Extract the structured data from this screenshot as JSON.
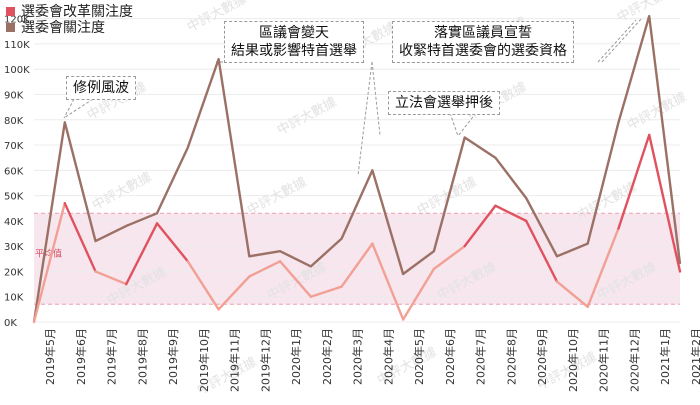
{
  "chart_data": {
    "type": "line",
    "categories": [
      "2019年5月",
      "2019年6月",
      "2019年7月",
      "2019年8月",
      "2019年9月",
      "2019年10月",
      "2019年11月",
      "2019年12月",
      "2020年1月",
      "2020年2月",
      "2020年3月",
      "2020年4月",
      "2020年5月",
      "2020年6月",
      "2020年7月",
      "2020年8月",
      "2020年9月",
      "2020年10月",
      "2020年11月",
      "2020年12月",
      "2021年1月",
      "2021年2月"
    ],
    "x_labels": [
      "2019年5月",
      "2019年6月",
      "2019年7月",
      "2019年8月",
      "2019年9月",
      "2019年10月",
      "2019年11月",
      "2019年12月",
      "2020年1月",
      "2020年2月",
      "2020年3月",
      "2020年4月",
      "2020年5月",
      "2020年6月",
      "2020年7月",
      "2020年8月",
      "2020年9月",
      "2020年10月",
      "2020年11月",
      "2020年12月",
      "2021年1月",
      "2021年2月"
    ],
    "y_ticks": [
      "0K",
      "10K",
      "20K",
      "30K",
      "40K",
      "50K",
      "60K",
      "70K",
      "80K",
      "90K",
      "100K",
      "110K",
      "120K"
    ],
    "ylim": [
      0,
      125000
    ],
    "series": [
      {
        "name": "選委會改革關注度",
        "color": "#e0525f",
        "values": [
          0,
          47000,
          20000,
          15000,
          39000,
          24000,
          5000,
          18000,
          24000,
          10000,
          14000,
          31000,
          1000,
          21000,
          30000,
          46000,
          40000,
          16000,
          6000,
          37000,
          74000,
          20000
        ]
      },
      {
        "name": "選委會關注度",
        "color": "#9b7166",
        "values": [
          0,
          79000,
          32000,
          38000,
          43000,
          69000,
          104000,
          26000,
          28000,
          22000,
          33000,
          60000,
          19000,
          28000,
          73000,
          65000,
          49000,
          26000,
          31000,
          79000,
          121000,
          23000
        ]
      }
    ],
    "average": {
      "label": "平均值",
      "band": [
        7000,
        43000
      ],
      "value": 27000
    },
    "annotations": [
      {
        "id": "anno-1",
        "text": "修例風波"
      },
      {
        "id": "anno-2",
        "text": "區議會變天\n結果或影響特首選舉"
      },
      {
        "id": "anno-3",
        "text": "立法會選舉押後"
      },
      {
        "id": "anno-4",
        "text": "落實區議員宣誓\n收緊特首選委會的選委資格"
      }
    ],
    "watermark": "中評大數據",
    "grid": true,
    "legend_position": "top-left"
  }
}
